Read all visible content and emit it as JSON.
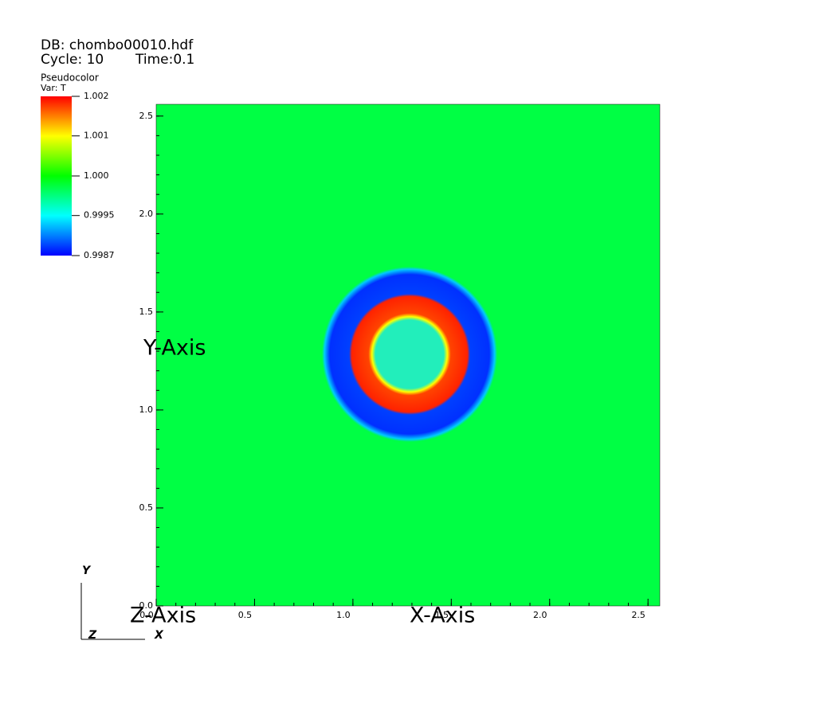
{
  "chart_data": {
    "type": "pseudocolor",
    "title": "DB: chombo00010.hdf",
    "cycle": "Cycle: 10",
    "time": "Time:0.1",
    "legend_title": "Pseudocolor",
    "variable": "Var: T",
    "colorbar_lim": [
      0.9987,
      1.002
    ],
    "colorbar_ticks": [
      {
        "value": 1.002,
        "label": "1.002"
      },
      {
        "value": 1.00118,
        "label": "1.001"
      },
      {
        "value": 1.00035,
        "label": "1.000"
      },
      {
        "value": 0.99953,
        "label": "0.9995"
      },
      {
        "value": 0.9987,
        "label": "0.9987"
      }
    ],
    "colorbar_colors": [
      "#0000ff",
      "#00ffff",
      "#00ff00",
      "#ffff00",
      "#ff0000"
    ],
    "xlabel": "X-Axis",
    "ylabel": "Y-Axis",
    "zlabel": "Z-Axis",
    "triad": [
      "X",
      "Y",
      "Z"
    ],
    "xlim": [
      0,
      2.56
    ],
    "ylim": [
      0,
      2.56
    ],
    "xticks": [
      {
        "value": 0,
        "label": "0.0"
      },
      0.5,
      {
        "value": 1,
        "label": "1.0"
      },
      1.5,
      {
        "value": 2,
        "label": "2.0"
      },
      2.5
    ],
    "yticks": [
      {
        "value": 0,
        "label": "0.0"
      },
      0.5,
      {
        "value": 1,
        "label": "1.0"
      },
      1.5,
      {
        "value": 2,
        "label": "2.0"
      },
      2.5
    ]
  }
}
